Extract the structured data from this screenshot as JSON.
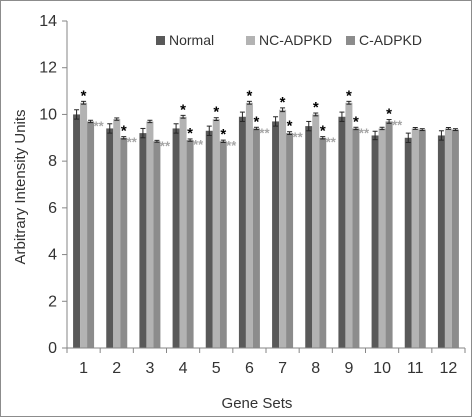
{
  "chart_data": {
    "type": "bar",
    "xlabel": "Gene Sets",
    "ylabel": "Arbitrary Intensity Units",
    "ylim": [
      0,
      14
    ],
    "yticks": [
      0,
      2,
      4,
      6,
      8,
      10,
      12,
      14
    ],
    "categories": [
      "1",
      "2",
      "3",
      "4",
      "5",
      "6",
      "7",
      "8",
      "9",
      "10",
      "11",
      "12"
    ],
    "grid": false,
    "legend_position": "top-right",
    "series": [
      {
        "name": "Normal",
        "color": "#595959",
        "values": [
          10.0,
          9.4,
          9.2,
          9.4,
          9.3,
          9.9,
          9.7,
          9.5,
          9.9,
          9.1,
          9.0,
          9.1
        ],
        "errors": [
          0.2,
          0.2,
          0.2,
          0.2,
          0.2,
          0.2,
          0.2,
          0.2,
          0.2,
          0.18,
          0.2,
          0.2
        ]
      },
      {
        "name": "NC-ADPKD",
        "color": "#b3b3b3",
        "values": [
          10.5,
          9.8,
          9.7,
          9.9,
          9.8,
          10.5,
          10.2,
          10.0,
          10.5,
          9.4,
          9.4,
          9.4
        ],
        "errors": [
          0.06,
          0.05,
          0.05,
          0.06,
          0.06,
          0.06,
          0.08,
          0.06,
          0.06,
          0.05,
          0.04,
          0.04
        ]
      },
      {
        "name": "C-ADPKD",
        "color": "#8c8c8c",
        "values": [
          9.7,
          9.0,
          8.85,
          8.9,
          8.85,
          9.4,
          9.2,
          9.0,
          9.4,
          9.7,
          9.35,
          9.35
        ],
        "errors": [
          0.05,
          0.05,
          0.04,
          0.05,
          0.05,
          0.05,
          0.06,
          0.05,
          0.05,
          0.08,
          0.04,
          0.04
        ]
      }
    ],
    "annotations": {
      "black_star_text": "*",
      "grey_star_text": "**",
      "black_star_color": "#000000",
      "grey_star_color": "#a6a6a6",
      "black_stars": [
        {
          "category": "1",
          "series": "NC-ADPKD"
        },
        {
          "category": "2",
          "series": "C-ADPKD"
        },
        {
          "category": "4",
          "series": "NC-ADPKD"
        },
        {
          "category": "4",
          "series": "C-ADPKD"
        },
        {
          "category": "5",
          "series": "NC-ADPKD"
        },
        {
          "category": "5",
          "series": "C-ADPKD"
        },
        {
          "category": "6",
          "series": "NC-ADPKD"
        },
        {
          "category": "6",
          "series": "C-ADPKD"
        },
        {
          "category": "7",
          "series": "NC-ADPKD"
        },
        {
          "category": "7",
          "series": "C-ADPKD"
        },
        {
          "category": "8",
          "series": "NC-ADPKD"
        },
        {
          "category": "8",
          "series": "C-ADPKD"
        },
        {
          "category": "9",
          "series": "NC-ADPKD"
        },
        {
          "category": "9",
          "series": "C-ADPKD"
        },
        {
          "category": "10",
          "series": "C-ADPKD"
        }
      ],
      "grey_stars": [
        {
          "category": "1",
          "series": "C-ADPKD"
        },
        {
          "category": "2",
          "series": "C-ADPKD"
        },
        {
          "category": "3",
          "series": "C-ADPKD"
        },
        {
          "category": "4",
          "series": "C-ADPKD"
        },
        {
          "category": "5",
          "series": "C-ADPKD"
        },
        {
          "category": "6",
          "series": "C-ADPKD"
        },
        {
          "category": "7",
          "series": "C-ADPKD"
        },
        {
          "category": "8",
          "series": "C-ADPKD"
        },
        {
          "category": "9",
          "series": "C-ADPKD"
        },
        {
          "category": "10",
          "series": "C-ADPKD"
        }
      ]
    }
  }
}
